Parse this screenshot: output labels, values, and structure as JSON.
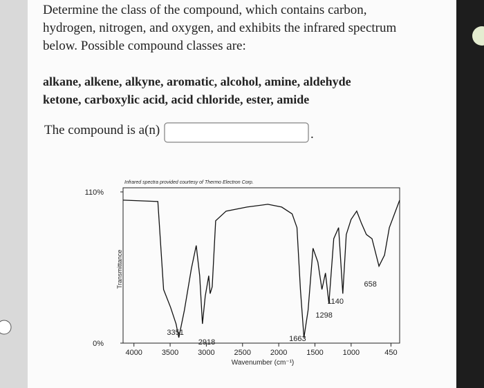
{
  "question": {
    "lines": [
      "Determine the class of the compound, which contains carbon,",
      "hydrogen, nitrogen, and oxygen, and exhibits the infrared spectrum",
      "below. Possible compound classes are:"
    ],
    "classes_lines": [
      "alkane, alkene, alkyne, aromatic, alcohol, amine, aldehyde",
      "ketone, carboxylic acid, acid chloride, ester, amide"
    ],
    "prompt": "The compound is a(n)",
    "prompt_end": "."
  },
  "chart_data": {
    "type": "line",
    "title": "Infrared spectra provided courtesy of Thermo Electron Corp.",
    "y_label": "Transmittance",
    "x_label": "Wavenumber (cm⁻¹)",
    "x": [
      4150,
      3670,
      3590,
      3494,
      3418,
      3380,
      3303,
      3207,
      3140,
      3092,
      3054,
      3015,
      2967,
      2948,
      2919,
      2871,
      2727,
      2439,
      2151,
      1959,
      1815,
      1748,
      1700,
      1652,
      1594,
      1527,
      1460,
      1403,
      1355,
      1307,
      1240,
      1173,
      1115,
      1067,
      1000,
      923,
      856,
      789,
      712,
      616,
      539,
      472,
      330
    ],
    "series": [
      {
        "name": "Transmittance",
        "color": "#111111",
        "values": [
          104,
          103,
          39,
          26,
          14,
          4,
          24,
          54,
          71,
          49,
          14,
          34,
          49,
          36,
          41,
          89,
          96,
          99,
          101,
          99,
          94,
          84,
          39,
          4,
          24,
          69,
          59,
          39,
          51,
          29,
          76,
          84,
          36,
          79,
          90,
          96,
          87,
          79,
          76,
          56,
          64,
          84,
          104
        ]
      }
    ],
    "peak_labels": [
      3351,
      2918,
      1663,
      1298,
      1140,
      658
    ],
    "xlim": [
      4150,
      330
    ],
    "xticks": [
      4000,
      3500,
      3000,
      2500,
      2000,
      1500,
      1000,
      450
    ],
    "ylim": [
      0,
      113
    ],
    "yticks": [
      {
        "value": 110,
        "label": "110%"
      },
      {
        "value": 0,
        "label": "0%"
      }
    ]
  }
}
